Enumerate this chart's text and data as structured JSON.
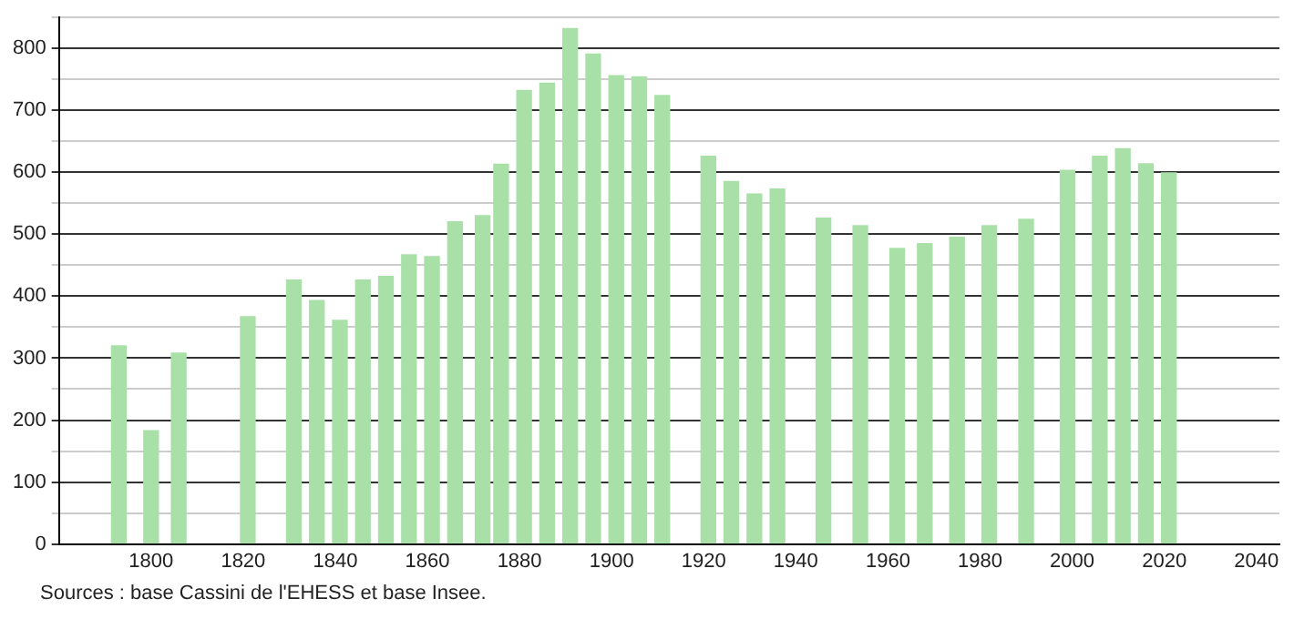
{
  "chart_data": {
    "type": "bar",
    "x": [
      1793,
      1800,
      1806,
      1821,
      1831,
      1836,
      1841,
      1846,
      1851,
      1856,
      1861,
      1866,
      1872,
      1876,
      1881,
      1886,
      1891,
      1896,
      1901,
      1906,
      1911,
      1921,
      1926,
      1931,
      1936,
      1946,
      1954,
      1962,
      1968,
      1975,
      1982,
      1990,
      1999,
      2006,
      2011,
      2016,
      2021
    ],
    "values": [
      320,
      183,
      308,
      367,
      426,
      393,
      361,
      426,
      432,
      467,
      464,
      520,
      530,
      613,
      732,
      744,
      832,
      791,
      756,
      754,
      724,
      626,
      585,
      565,
      573,
      526,
      514,
      477,
      485,
      495,
      514,
      524,
      603,
      626,
      638,
      614,
      599
    ],
    "color": "#a8e0a8",
    "xlim": [
      1780,
      2045
    ],
    "xticks": [
      1800,
      1820,
      1840,
      1860,
      1880,
      1900,
      1920,
      1940,
      1960,
      1980,
      2000,
      2020,
      2040
    ],
    "ylim": [
      0,
      850
    ],
    "yticks": [
      0,
      {
        "value": 50,
        "label": null
      },
      100,
      {
        "value": 150,
        "label": null
      },
      200,
      {
        "value": 250,
        "label": null
      },
      300,
      {
        "value": 350,
        "label": null
      },
      400,
      {
        "value": 450,
        "label": null
      },
      500,
      {
        "value": 550,
        "label": null
      },
      600,
      {
        "value": 650,
        "label": null
      },
      700,
      {
        "value": 750,
        "label": null
      },
      800,
      {
        "value": 850,
        "label": null
      }
    ],
    "grid": "y",
    "annotations": [
      "Sources : base Cassini de l'EHESS et base Insee."
    ]
  }
}
